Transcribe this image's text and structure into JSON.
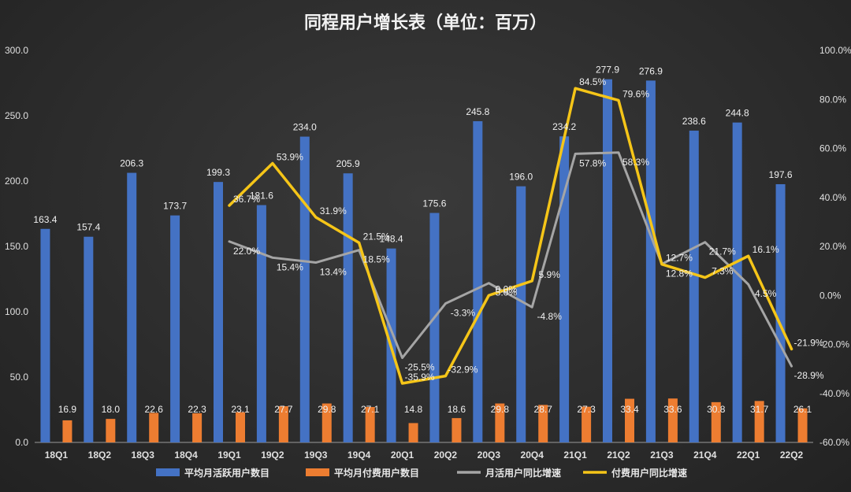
{
  "chart_data": {
    "type": "bar",
    "title": "同程用户增长表（单位：百万）",
    "categories": [
      "18Q1",
      "18Q2",
      "18Q3",
      "18Q4",
      "19Q1",
      "19Q2",
      "19Q3",
      "19Q4",
      "20Q1",
      "20Q2",
      "20Q3",
      "20Q4",
      "21Q1",
      "21Q2",
      "21Q3",
      "21Q4",
      "22Q1",
      "22Q2"
    ],
    "y_left": {
      "min": 0,
      "max": 300,
      "ticks": [
        "0.0",
        "50.0",
        "100.0",
        "150.0",
        "200.0",
        "250.0",
        "300.0"
      ]
    },
    "y_right": {
      "min": -60,
      "max": 100,
      "ticks": [
        "-60.0%",
        "-40.0%",
        "-20.0%",
        "0.0%",
        "20.0%",
        "40.0%",
        "60.0%",
        "80.0%",
        "100.0%"
      ]
    },
    "grid": false,
    "legend_position": "bottom",
    "series": [
      {
        "name": "平均月活跃用户数目",
        "kind": "bar",
        "axis": "left",
        "color": "#4472c4",
        "values": [
          163.4,
          157.4,
          206.3,
          173.7,
          199.3,
          181.6,
          234.0,
          205.9,
          148.4,
          175.6,
          245.8,
          196.0,
          234.2,
          277.9,
          276.9,
          238.6,
          244.8,
          197.6
        ],
        "labels": [
          "163.4",
          "157.4",
          "206.3",
          "173.7",
          "199.3",
          "181.6",
          "234.0",
          "205.9",
          "148.4",
          "175.6",
          "245.8",
          "196.0",
          "234.2",
          "277.9",
          "276.9",
          "238.6",
          "244.8",
          "197.6"
        ]
      },
      {
        "name": "平均月付费用户数目",
        "kind": "bar",
        "axis": "left",
        "color": "#ed7d31",
        "values": [
          16.9,
          18.0,
          22.6,
          22.3,
          23.1,
          27.7,
          29.8,
          27.1,
          14.8,
          18.6,
          29.8,
          28.7,
          27.3,
          33.4,
          33.6,
          30.8,
          31.7,
          26.1
        ],
        "labels": [
          "16.9",
          "18.0",
          "22.6",
          "22.3",
          "23.1",
          "27.7",
          "29.8",
          "27.1",
          "14.8",
          "18.6",
          "29.8",
          "28.7",
          "27.3",
          "33.4",
          "33.6",
          "30.8",
          "31.7",
          "26.1"
        ]
      },
      {
        "name": "月活用户同比增速",
        "kind": "line",
        "axis": "right",
        "color": "#a5a5a5",
        "values": [
          null,
          null,
          null,
          null,
          22.0,
          15.4,
          13.4,
          18.5,
          -25.5,
          -3.3,
          5.0,
          -4.8,
          57.8,
          58.3,
          12.8,
          21.7,
          4.5,
          -28.9
        ],
        "labels": [
          null,
          null,
          null,
          null,
          "22.0%",
          "15.4%",
          "13.4%",
          "18.5%",
          "-25.5%",
          "-3.3%",
          "5.0%",
          "-4.8%",
          "57.8%",
          "58.3%",
          "12.8%",
          "21.7%",
          "4.5%",
          "-28.9%"
        ]
      },
      {
        "name": "付费用户同比增速",
        "kind": "line",
        "axis": "right",
        "color": "#f5c518",
        "values": [
          null,
          null,
          null,
          null,
          36.7,
          53.9,
          31.9,
          21.5,
          -35.9,
          -32.9,
          0.0,
          5.9,
          84.5,
          79.6,
          12.7,
          7.3,
          16.1,
          -21.9
        ],
        "labels": [
          null,
          null,
          null,
          null,
          "36.7%",
          "53.9%",
          "31.9%",
          "21.5%",
          "-35.9%",
          "-32.9%",
          "0.0%",
          "5.9%",
          "84.5%",
          "79.6%",
          "12.7%",
          "7.3%",
          "16.1%",
          "-21.9%"
        ]
      }
    ]
  }
}
